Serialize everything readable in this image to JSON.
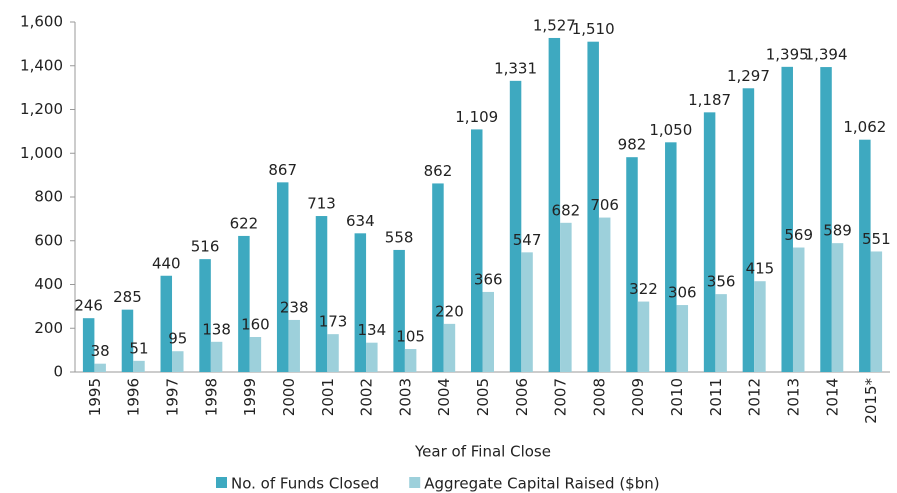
{
  "chart_data": {
    "type": "bar",
    "x_label": "Year of Final Close",
    "categories": [
      "1995",
      "1996",
      "1997",
      "1998",
      "1999",
      "2000",
      "2001",
      "2002",
      "2003",
      "2004",
      "2005",
      "2006",
      "2007",
      "2008",
      "2009",
      "2010",
      "2011",
      "2012",
      "2013",
      "2014",
      "2015*"
    ],
    "series": [
      {
        "name": "No. of Funds Closed",
        "color": "#3ea9c0",
        "values": [
          246,
          285,
          440,
          516,
          622,
          867,
          713,
          634,
          558,
          862,
          1109,
          1331,
          1527,
          1510,
          982,
          1050,
          1187,
          1297,
          1395,
          1394,
          1062
        ],
        "value_labels": [
          "246",
          "285",
          "440",
          "516",
          "622",
          "867",
          "713",
          "634",
          "558",
          "862",
          "1,109",
          "1,331",
          "1,527",
          "1,510",
          "982",
          "1,050",
          "1,187",
          "1,297",
          "1,395",
          "1,394",
          "1,062"
        ]
      },
      {
        "name": "Aggregate Capital Raised ($bn)",
        "color": "#9dd0db",
        "values": [
          38,
          51,
          95,
          138,
          160,
          238,
          173,
          134,
          105,
          220,
          366,
          547,
          682,
          706,
          322,
          306,
          356,
          415,
          569,
          589,
          551
        ]
      }
    ],
    "ylim": [
      0,
      1600
    ],
    "yticks": [
      0,
      200,
      400,
      600,
      800,
      {
        "value": 1000,
        "label": "1,000"
      },
      {
        "value": 1200,
        "label": "1,200"
      },
      {
        "value": 1400,
        "label": "1,400"
      },
      {
        "value": 1600,
        "label": "1,600"
      }
    ],
    "grid": false
  }
}
